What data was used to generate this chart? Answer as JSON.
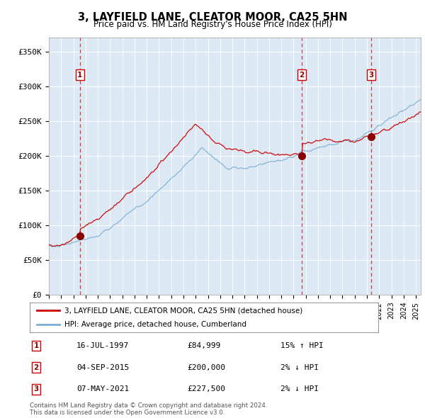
{
  "title": "3, LAYFIELD LANE, CLEATOR MOOR, CA25 5HN",
  "subtitle": "Price paid vs. HM Land Registry's House Price Index (HPI)",
  "plot_bg_color": "#dce9f5",
  "sale_color": "#cc0000",
  "hpi_color": "#7bafd4",
  "ylim": [
    0,
    370000
  ],
  "yticks": [
    0,
    50000,
    100000,
    150000,
    200000,
    250000,
    300000,
    350000
  ],
  "ytick_labels": [
    "£0",
    "£50K",
    "£100K",
    "£150K",
    "£200K",
    "£250K",
    "£300K",
    "£350K"
  ],
  "sale_date_nums": [
    1997.54,
    2015.67,
    2021.35
  ],
  "sale_prices": [
    84999,
    200000,
    227500
  ],
  "sale_numbers": [
    "1",
    "2",
    "3"
  ],
  "vline_color": "#cc0000",
  "marker_color": "#8b0000",
  "legend_label_sale": "3, LAYFIELD LANE, CLEATOR MOOR, CA25 5HN (detached house)",
  "legend_label_hpi": "HPI: Average price, detached house, Cumberland",
  "table_rows": [
    [
      "1",
      "16-JUL-1997",
      "£84,999",
      "15% ↑ HPI"
    ],
    [
      "2",
      "04-SEP-2015",
      "£200,000",
      "2% ↓ HPI"
    ],
    [
      "3",
      "07-MAY-2021",
      "£227,500",
      "2% ↓ HPI"
    ]
  ],
  "footnote": "Contains HM Land Registry data © Crown copyright and database right 2024.\nThis data is licensed under the Open Government Licence v3.0.",
  "xstart": 1995.0,
  "xend": 2025.4
}
